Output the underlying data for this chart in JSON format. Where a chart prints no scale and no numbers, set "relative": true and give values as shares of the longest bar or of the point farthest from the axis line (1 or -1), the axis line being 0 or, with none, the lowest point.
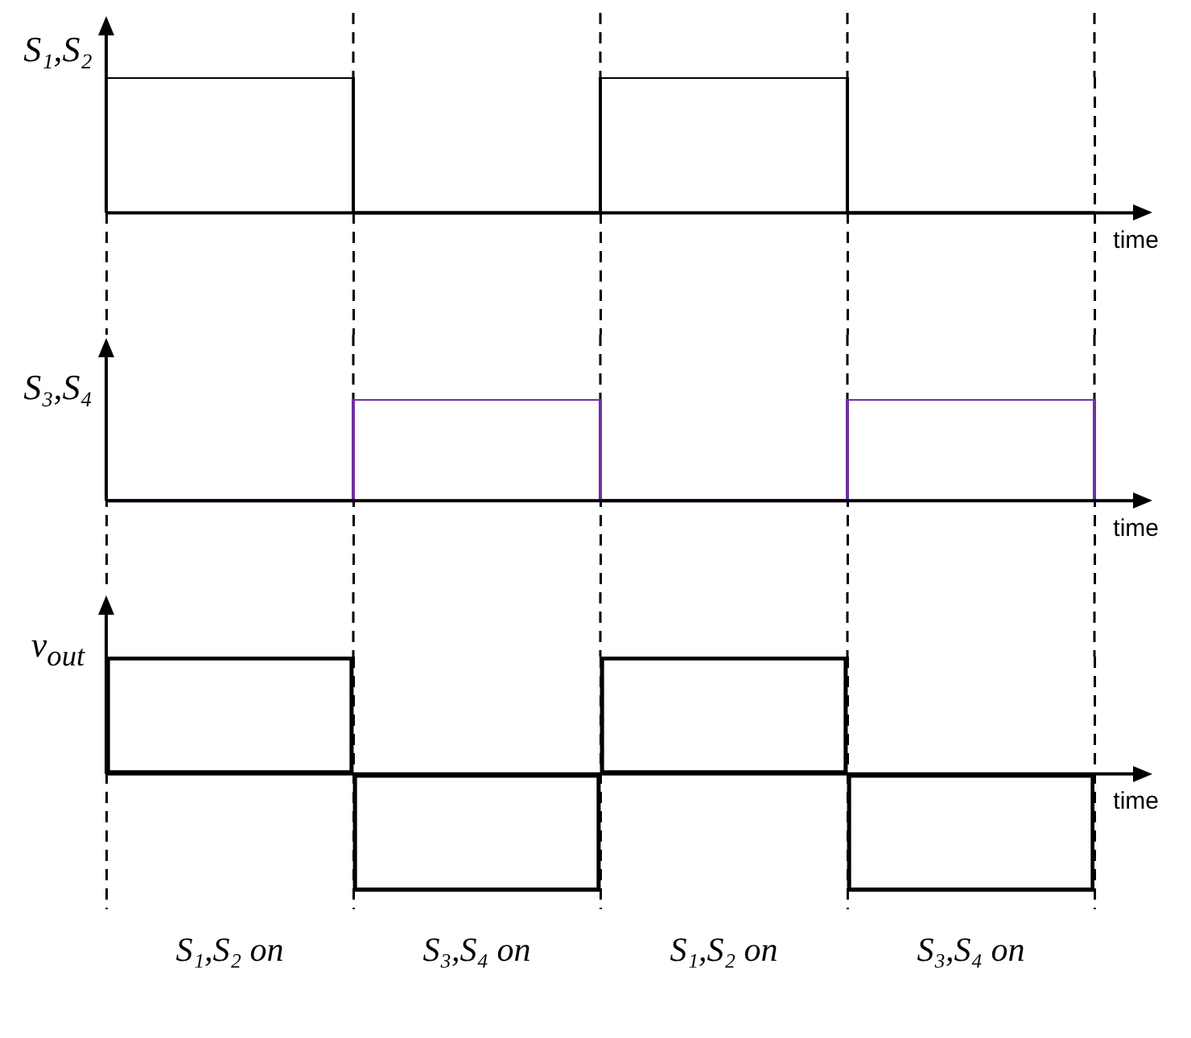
{
  "chart_data": [
    {
      "type": "step",
      "ylabel": "S₁,S₂",
      "xlabel": "time",
      "categories": [
        null,
        null,
        null,
        null,
        null
      ],
      "values": [
        1,
        0,
        1,
        0,
        0
      ],
      "color": "#000000",
      "relative": true,
      "grid": "x",
      "tick_labels": false
    },
    {
      "type": "step",
      "ylabel": "S₃,S₄",
      "xlabel": "time",
      "categories": [
        null,
        null,
        null,
        null,
        null
      ],
      "values": [
        0,
        1,
        0,
        1,
        0
      ],
      "color": "#7030a0",
      "relative": true,
      "grid": "x",
      "tick_labels": false
    },
    {
      "type": "bar",
      "ylabel": "v$_{out}$",
      "xlabel": "time",
      "categories": [
        "S₁,S₂ on",
        "S₃,S₄ on",
        "S₁,S₂ on",
        "S₃,S₄ on"
      ],
      "values": [
        1,
        -1,
        1,
        -1
      ],
      "color": "#000000",
      "relative": true,
      "grid": "x",
      "tick_labels": "x"
    }
  ]
}
